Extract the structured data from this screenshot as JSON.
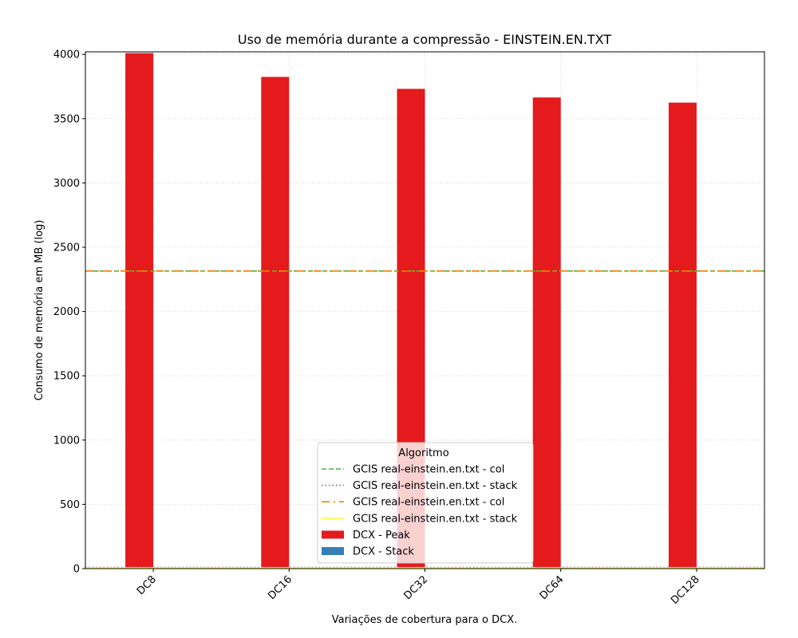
{
  "chart_data": {
    "type": "bar",
    "title": "Uso de memória durante a compressão -  EINSTEIN.EN.TXT",
    "xlabel": "Variações de cobertura para o DCX.",
    "ylabel": "Consumo de memória em MB (log)",
    "categories": [
      "DC8",
      "DC16",
      "DC32",
      "DC64",
      "DC128"
    ],
    "ylim": [
      0,
      4020
    ],
    "yticks": [
      0,
      500,
      1000,
      1500,
      2000,
      2500,
      3000,
      3500,
      4000
    ],
    "grid": true,
    "series": [
      {
        "name": "DCX - Peak",
        "color": "#e41a1c",
        "values": [
          4010,
          3825,
          3732,
          3665,
          3625
        ]
      },
      {
        "name": "DCX - Stack",
        "color": "#377eb8",
        "values": [
          0,
          0,
          0,
          0,
          0
        ]
      }
    ],
    "reference_lines": [
      {
        "name": "GCIS real-einstein.en.txt - col",
        "value": 2315,
        "color": "#4daf4a",
        "style": "dashed"
      },
      {
        "name": "GCIS real-einstein.en.txt - stack",
        "value": 10,
        "color": "#984ea3",
        "style": "dotted"
      },
      {
        "name": "GCIS real-einstein.en.txt - col",
        "value": 2315,
        "color": "#ff7f00",
        "style": "dashdot"
      },
      {
        "name": "GCIS real-einstein.en.txt - stack",
        "value": 6,
        "color": "#ffff33",
        "style": "solid"
      }
    ],
    "legend": {
      "title": "Algoritmo",
      "position": "lower-center"
    }
  }
}
